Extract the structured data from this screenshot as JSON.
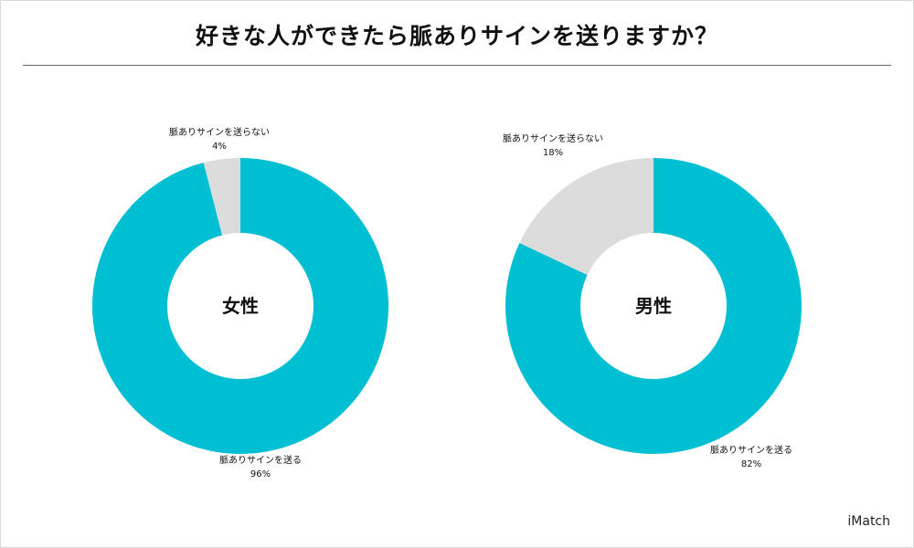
{
  "title": "好きな人ができたら脈ありサインを送りますか？",
  "brand": "iMatch",
  "colors": {
    "send": "#00bfd3",
    "not_send": "#dcdcdc",
    "hole": "#ffffff"
  },
  "chart_data": [
    {
      "type": "pie",
      "center_label": "女性",
      "categories": [
        "脈ありサインを送る",
        "脈ありサインを送らない"
      ],
      "values": [
        96,
        4
      ],
      "value_labels": [
        "96%",
        "4%"
      ]
    },
    {
      "type": "pie",
      "center_label": "男性",
      "categories": [
        "脈ありサインを送る",
        "脈ありサインを送らない"
      ],
      "values": [
        82,
        18
      ],
      "value_labels": [
        "82%",
        "18%"
      ]
    }
  ]
}
